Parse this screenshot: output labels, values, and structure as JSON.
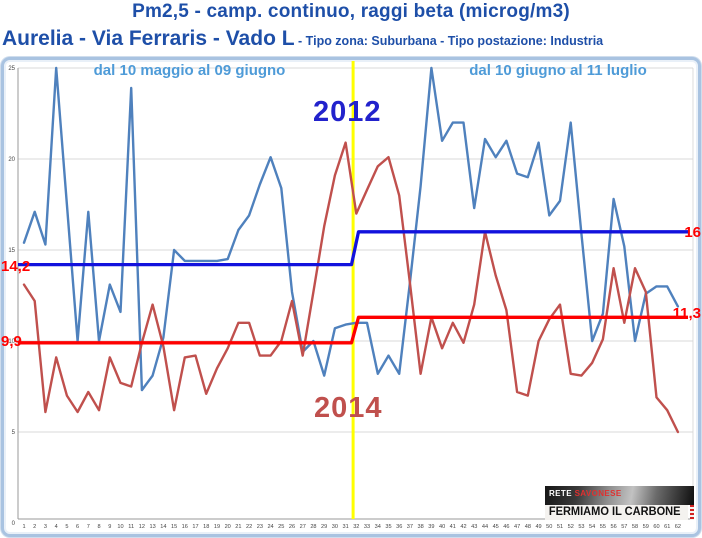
{
  "title": "Pm2,5 - camp. continuo, raggi beta (microg/m3)",
  "subtitle_main": "Aurelia - Via Ferraris - Vado L",
  "subtitle_detail": "- Tipo zona: Suburbana - Tipo postazione: Industria",
  "period_left": "dal 10 maggio al 09 giugno",
  "period_right": "dal 10 giugno al 11 luglio",
  "year_left": "2012",
  "year_right": "2014",
  "avg_labels": {
    "blue_left": "14,2",
    "blue_right": "16",
    "red_left": "9,9",
    "red_right": "11,3"
  },
  "logo": {
    "line1_white": "RETE",
    "line1_red": "SAVONESE",
    "line2": "FERMIAMO IL CARBONE"
  },
  "colors": {
    "title_blue": "#1e4fa8",
    "period_label_blue": "#4e9bd8",
    "year_2012_blue": "#2222cc",
    "year_2014_red": "#c0504d",
    "series_2012": "#4f81bd",
    "series_2014": "#c0504d",
    "avg_2012": "#1212dd",
    "avg_2014": "#fe0000",
    "divider_yellow": "#ffff00",
    "gridline": "#d8d8d8",
    "axis": "#9a9a9a",
    "tick_text": "#444444"
  },
  "chart_data": {
    "type": "line",
    "title": "Pm2,5 - camp. continuo, raggi beta (microg/m3)",
    "xlabel": "",
    "ylabel": "microg/m3",
    "ylim": [
      0,
      25
    ],
    "y_ticks": [
      25,
      20,
      15,
      10,
      5,
      0
    ],
    "grid": true,
    "divider_x": 31.7,
    "x": [
      1,
      2,
      3,
      4,
      5,
      6,
      7,
      8,
      9,
      10,
      11,
      12,
      13,
      14,
      15,
      16,
      17,
      18,
      19,
      20,
      21,
      22,
      23,
      24,
      25,
      26,
      27,
      28,
      29,
      30,
      31,
      32,
      33,
      34,
      35,
      36,
      37,
      38,
      39,
      40,
      41,
      42,
      43,
      44,
      45,
      46,
      47,
      48,
      49,
      50,
      51,
      52,
      53,
      54,
      55,
      56,
      57,
      58,
      59,
      60,
      61,
      62
    ],
    "series": [
      {
        "name": "2012",
        "values": [
          15.4,
          17.1,
          15.3,
          25.0,
          17.5,
          10.0,
          17.1,
          10.0,
          13.1,
          11.6,
          23.9,
          7.3,
          8.1,
          10.2,
          15.0,
          14.4,
          14.4,
          14.4,
          14.4,
          14.5,
          16.1,
          16.9,
          18.6,
          20.1,
          18.4,
          12.7,
          9.4,
          10.0,
          8.1,
          10.7,
          10.9,
          11.0,
          11.0,
          8.2,
          9.2,
          8.2,
          13.2,
          18.5,
          25.0,
          21.0,
          22.0,
          22.0,
          17.3,
          21.1,
          20.1,
          21.0,
          19.2,
          19.0,
          20.9,
          16.9,
          17.7,
          22.0,
          15.9,
          10.0,
          11.5,
          17.8,
          15.2,
          10.0,
          12.6,
          13.0,
          13.0,
          11.9
        ]
      },
      {
        "name": "2014",
        "values": [
          13.1,
          12.2,
          6.1,
          9.1,
          7.0,
          6.1,
          7.2,
          6.2,
          9.1,
          7.7,
          7.5,
          9.9,
          12.0,
          9.7,
          6.2,
          9.1,
          9.2,
          7.1,
          8.5,
          9.6,
          11.0,
          11.0,
          9.2,
          9.2,
          10.0,
          12.2,
          9.2,
          12.7,
          16.3,
          19.1,
          20.9,
          17.0,
          18.3,
          19.6,
          20.1,
          18.0,
          13.2,
          8.2,
          11.3,
          9.6,
          11.0,
          9.9,
          12.0,
          16.0,
          13.6,
          11.7,
          7.2,
          7.0,
          10.0,
          11.2,
          12.0,
          8.2,
          8.1,
          8.8,
          10.1,
          14.0,
          11.0,
          14.0,
          12.7,
          6.9,
          6.2,
          5.0
        ]
      }
    ],
    "avg_steps": [
      {
        "series": "2012",
        "before": 14.2,
        "after": 16.0
      },
      {
        "series": "2014",
        "before": 9.9,
        "after": 11.3
      }
    ]
  }
}
